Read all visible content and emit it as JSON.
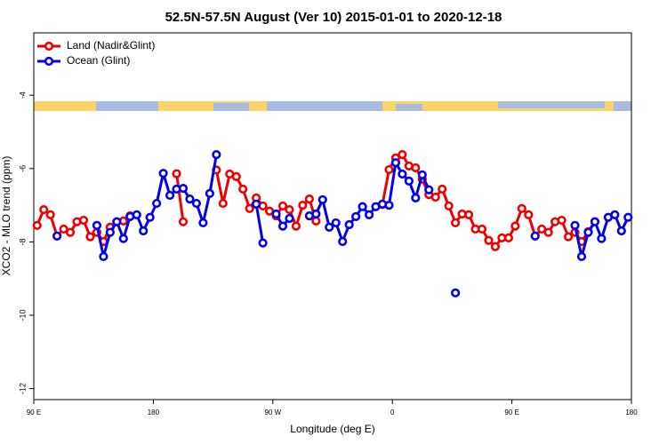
{
  "chart_data": {
    "type": "line",
    "title": "52.5N-57.5N August (Ver 10)   2015-01-01 to 2020-12-18",
    "xlabel": "Longitude (deg E)",
    "ylabel": "XCO2 - MLO trend (ppm)",
    "x": [
      -267.5,
      -262.5,
      -257.5,
      -252.5,
      -247.5,
      -242.5,
      -237.5,
      -232.5,
      -227.5,
      -222.5,
      -217.5,
      -212.5,
      -207.5,
      -202.5,
      -197.5,
      -192.5,
      -187.5,
      -182.5,
      -177.5,
      -172.5,
      -167.5,
      -162.5,
      -157.5,
      -152.5,
      -147.5,
      -142.5,
      -137.5,
      -132.5,
      -127.5,
      -122.5,
      -117.5,
      -112.5,
      -107.5,
      -102.5,
      -97.5,
      -92.5,
      -87.5,
      -82.5,
      -77.5,
      -72.5,
      -67.5,
      -62.5,
      -57.5,
      -52.5,
      -47.5,
      -42.5,
      -37.5,
      -32.5,
      -27.5,
      -22.5,
      -17.5,
      -12.5,
      -7.5,
      -2.5,
      2.5,
      7.5,
      12.5,
      17.5,
      22.5,
      27.5,
      32.5,
      37.5,
      42.5,
      47.5,
      52.5,
      57.5,
      62.5,
      67.5,
      72.5,
      77.5,
      82.5,
      87.5,
      92.5,
      97.5,
      102.5,
      107.5,
      112.5,
      117.5,
      122.5,
      127.5,
      132.5,
      137.5,
      142.5,
      147.5,
      152.5,
      157.5,
      162.5,
      167.5,
      172.5,
      177.5
    ],
    "series": [
      {
        "name": "Land (Nadir&Glint)",
        "color": "#ee0000",
        "values": [
          -7.55,
          -7.12,
          -7.26,
          -7.84,
          -7.65,
          -7.74,
          -7.45,
          -7.41,
          -7.86,
          -7.74,
          -7.99,
          -7.6,
          -7.45,
          -7.43,
          -7.29,
          null,
          null,
          null,
          null,
          null,
          null,
          -6.14,
          -7.45,
          null,
          null,
          null,
          null,
          -6.04,
          -6.95,
          -6.15,
          -6.22,
          -6.56,
          -7.09,
          -6.8,
          -7.02,
          -7.16,
          -7.29,
          -7.02,
          -7.12,
          -7.57,
          -7.0,
          -6.83,
          -7.43,
          null,
          null,
          null,
          null,
          null,
          null,
          null,
          null,
          null,
          -6.98,
          -6.03,
          -5.71,
          -5.62,
          -5.93,
          -5.98,
          -6.29,
          -6.71,
          -6.78,
          -6.56,
          -7.02,
          -7.48,
          -7.24,
          -7.26,
          -7.65,
          -7.65,
          -7.96,
          -8.13,
          -7.89,
          -7.89,
          -7.57,
          -7.09,
          -7.26,
          -7.84,
          -7.65,
          -7.74,
          -7.45,
          -7.41,
          -7.86,
          -7.74,
          -7.99,
          -7.72,
          -7.45,
          null,
          null,
          null,
          null,
          null
        ]
      },
      {
        "name": "Ocean (Glint)",
        "color": "#0000ee",
        "values": [
          null,
          null,
          null,
          -7.84,
          null,
          null,
          null,
          null,
          null,
          -7.55,
          -8.4,
          -7.74,
          -7.45,
          -7.91,
          -7.31,
          -7.26,
          -7.7,
          -7.33,
          -6.95,
          -6.13,
          -6.73,
          -6.56,
          -6.54,
          -6.83,
          -6.95,
          -7.48,
          -6.68,
          -5.62,
          null,
          null,
          null,
          null,
          null,
          -6.97,
          -8.03,
          null,
          -7.24,
          -7.57,
          -7.36,
          null,
          null,
          -7.29,
          -7.24,
          -6.85,
          -7.6,
          -7.48,
          -7.99,
          -7.53,
          -7.31,
          -7.04,
          -7.26,
          -7.04,
          -6.97,
          -7.0,
          -5.84,
          -6.15,
          -6.34,
          -6.8,
          -6.17,
          -6.58,
          null,
          null,
          null,
          -9.39,
          null,
          null,
          null,
          null,
          null,
          null,
          null,
          null,
          null,
          null,
          null,
          -7.84,
          null,
          null,
          null,
          null,
          null,
          -7.55,
          -8.4,
          -7.74,
          -7.45,
          -7.91,
          -7.33,
          -7.26,
          -7.7,
          -7.33
        ]
      }
    ],
    "xlim": [
      -270,
      180
    ],
    "ylim": [
      -12.3,
      -2.3
    ],
    "xticks": [
      {
        "value": -270,
        "label": "90 E"
      },
      {
        "value": -180,
        "label": "180"
      },
      {
        "value": -90,
        "label": "90 W"
      },
      0,
      {
        "value": 90,
        "label": "90 E"
      },
      180
    ],
    "yticks": [
      -4,
      -6,
      -8,
      -10,
      -12
    ],
    "legend": "top-left",
    "grid": false
  }
}
